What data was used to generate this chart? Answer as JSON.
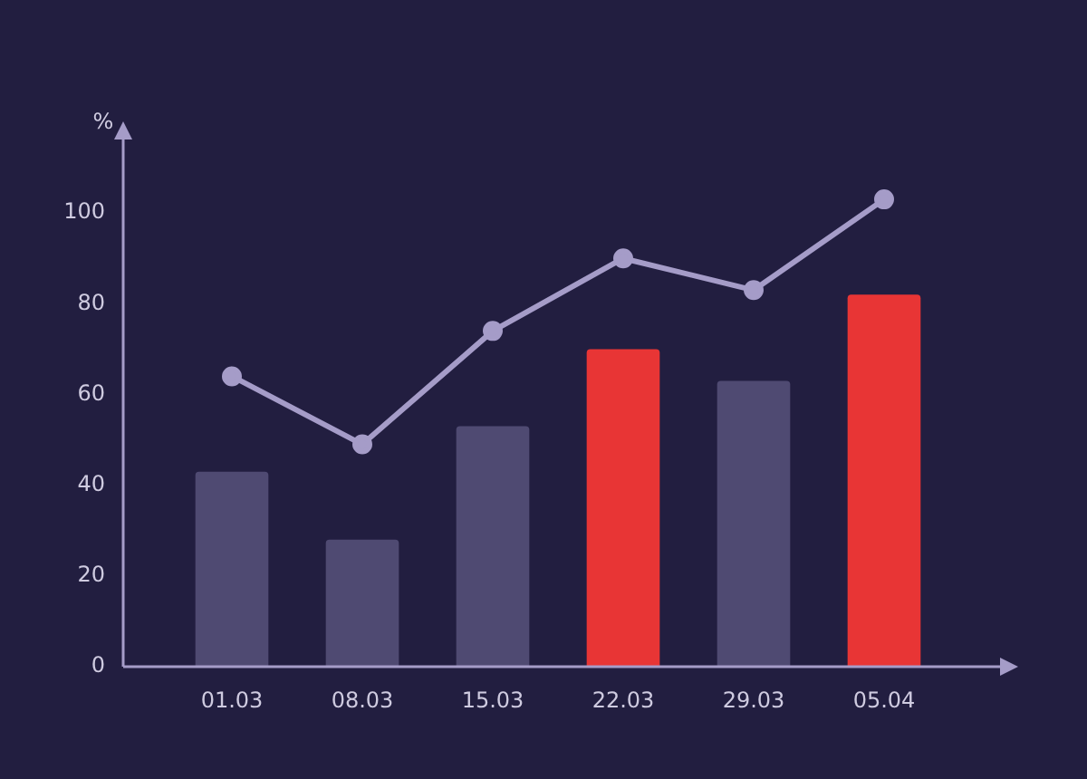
{
  "chart_data": {
    "type": "bar",
    "ylabel": "%",
    "categories": [
      "01.03",
      "08.03",
      "15.03",
      "22.03",
      "29.03",
      "05.04"
    ],
    "series": [
      {
        "colors": [
          "#4f4a72",
          "#4f4a72",
          "#4f4a72",
          "#e83535",
          "#4f4a72",
          "#e83535"
        ],
        "values": [
          43,
          28,
          53,
          70,
          63,
          82
        ]
      },
      {
        "type": "line",
        "color": "#a59cc8",
        "values": [
          64,
          49,
          74,
          90,
          83,
          103
        ]
      }
    ],
    "ylim": [
      0,
      117
    ],
    "yticks": [
      0,
      20,
      40,
      60,
      80,
      100
    ],
    "grid": false,
    "legend": false,
    "marker": "circle"
  }
}
